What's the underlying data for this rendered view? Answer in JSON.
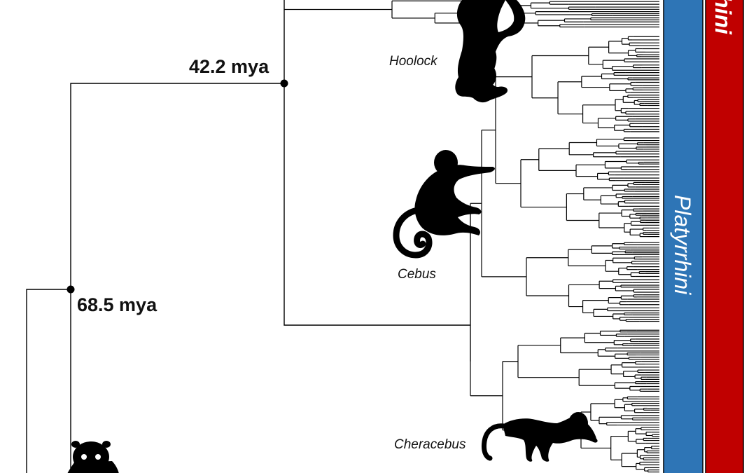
{
  "nodes": {
    "node_a": {
      "age": "42.2 mya"
    },
    "node_b": {
      "age": "68.5 mya"
    }
  },
  "genera": {
    "hoolock": "Hoolock",
    "cebus": "Cebus",
    "cheracebus": "Cheracebus"
  },
  "clades": {
    "platyrrhini": {
      "label": "Platyrrhini",
      "color": "#2e75b6"
    },
    "catarrhini_partial": {
      "label": "hini",
      "color": "#c00000"
    }
  },
  "icons": {
    "hoolock": "gibbon-silhouette-icon",
    "cebus": "capuchin-silhouette-icon",
    "cheracebus": "titi-monkey-silhouette-icon",
    "bottom_left": "tarsier-silhouette-icon"
  }
}
